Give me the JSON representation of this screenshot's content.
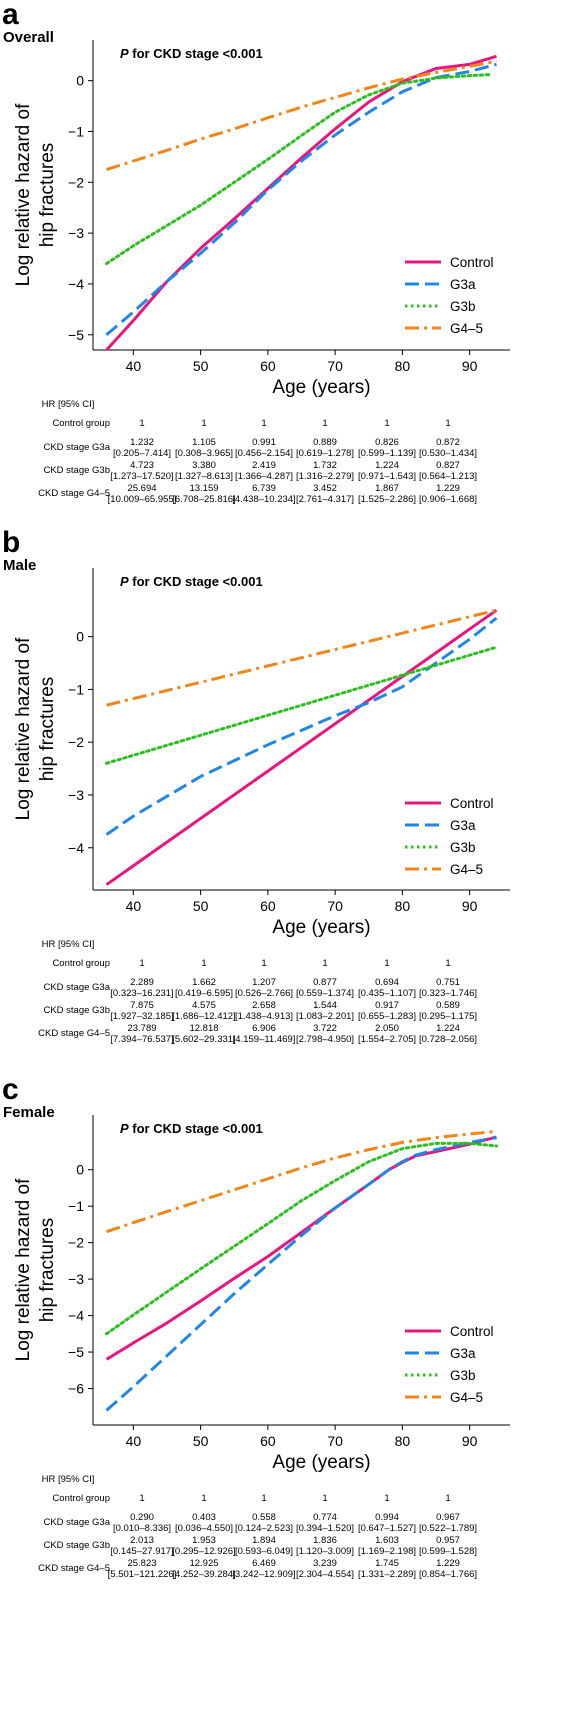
{
  "figure": {
    "panels": [
      {
        "letter": "a",
        "name": "Overall",
        "p_prefix": "P",
        "p_rest": " for CKD stage <0.001",
        "ylabel_line1": "Log relative hazard of",
        "ylabel_line2": "hip fractures",
        "xlabel": "Age (years)",
        "legend": [
          "Control",
          "G3a",
          "G3b",
          "G4–5"
        ],
        "table": {
          "header": "HR [95% CI]",
          "rows": [
            {
              "label": "Control group",
              "values": [
                "1",
                "1",
                "1",
                "1",
                "1",
                "1"
              ],
              "cis": [
                "",
                "",
                "",
                "",
                "",
                ""
              ]
            },
            {
              "label": "CKD stage G3a",
              "values": [
                "1.232",
                "1.105",
                "0.991",
                "0.889",
                "0.826",
                "0.872"
              ],
              "cis": [
                "[0.205–7.414]",
                "[0.308–3.965]",
                "[0.456–2.154]",
                "[0.619–1.278]",
                "[0.599–1.139]",
                "[0.530–1.434]"
              ]
            },
            {
              "label": "CKD stage G3b",
              "values": [
                "4.723",
                "3.380",
                "2.419",
                "1.732",
                "1.224",
                "0.827"
              ],
              "cis": [
                "[1.273–17.520]",
                "[1.327–8.613]",
                "[1.366–4.287]",
                "[1.316–2.279]",
                "[0.971–1.543]",
                "[0.564–1.213]"
              ]
            },
            {
              "label": "CKD stage G4–5",
              "values": [
                "25.694",
                "13.159",
                "6.739",
                "3.452",
                "1.867",
                "1.229"
              ],
              "cis": [
                "[10.009–65.955]",
                "[6.708–25.816]",
                "[4.438–10.234]",
                "[2.761–4.317]",
                "[1.525–2.286]",
                "[0.906–1.668]"
              ]
            }
          ]
        }
      },
      {
        "letter": "b",
        "name": "Male",
        "p_prefix": "P",
        "p_rest": " for CKD stage <0.001",
        "ylabel_line1": "Log relative hazard of",
        "ylabel_line2": "hip fractures",
        "xlabel": "Age (years)",
        "legend": [
          "Control",
          "G3a",
          "G3b",
          "G4–5"
        ],
        "table": {
          "header": "HR [95% CI]",
          "rows": [
            {
              "label": "Control group",
              "values": [
                "1",
                "1",
                "1",
                "1",
                "1",
                "1"
              ],
              "cis": [
                "",
                "",
                "",
                "",
                "",
                ""
              ]
            },
            {
              "label": "CKD stage G3a",
              "values": [
                "2.289",
                "1.662",
                "1.207",
                "0.877",
                "0.694",
                "0.751"
              ],
              "cis": [
                "[0.323–16.231]",
                "[0.419–6.595]",
                "[0.526–2.766]",
                "[0.559–1.374]",
                "[0.435–1.107]",
                "[0.323–1.746]"
              ]
            },
            {
              "label": "CKD stage G3b",
              "values": [
                "7.875",
                "4.575",
                "2.658",
                "1.544",
                "0.917",
                "0.589"
              ],
              "cis": [
                "[1.927–32.185]",
                "[1.686–12.412]",
                "[1.438–4.913]",
                "[1.083–2.201]",
                "[0.655–1.283]",
                "[0.295–1.175]"
              ]
            },
            {
              "label": "CKD stage G4–5",
              "values": [
                "23.789",
                "12.818",
                "6.906",
                "3.722",
                "2.050",
                "1.224"
              ],
              "cis": [
                "[7.394–76.537]",
                "[5.602–29.331]",
                "[4.159–11.469]",
                "[2.798–4.950]",
                "[1.554–2.705]",
                "[0.728–2.056]"
              ]
            }
          ]
        }
      },
      {
        "letter": "c",
        "name": "Female",
        "p_prefix": "P",
        "p_rest": " for CKD stage <0.001",
        "ylabel_line1": "Log relative hazard of",
        "ylabel_line2": "hip fractures",
        "xlabel": "Age (years)",
        "legend": [
          "Control",
          "G3a",
          "G3b",
          "G4–5"
        ],
        "table": {
          "header": "HR [95% CI]",
          "rows": [
            {
              "label": "Control group",
              "values": [
                "1",
                "1",
                "1",
                "1",
                "1",
                "1"
              ],
              "cis": [
                "",
                "",
                "",
                "",
                "",
                ""
              ]
            },
            {
              "label": "CKD stage G3a",
              "values": [
                "0.290",
                "0.403",
                "0.558",
                "0.774",
                "0.994",
                "0.967"
              ],
              "cis": [
                "[0.010–8.336]",
                "[0.036–4.550]",
                "[0.124–2.523]",
                "[0.394–1.520]",
                "[0.647–1.527]",
                "[0.522–1.789]"
              ]
            },
            {
              "label": "CKD stage G3b",
              "values": [
                "2.013",
                "1.953",
                "1.894",
                "1.836",
                "1.603",
                "0.957"
              ],
              "cis": [
                "[0.145–27.917]",
                "[0.295–12.926]",
                "[0.593–6.049]",
                "[1.120–3.009]",
                "[1.169–2.198]",
                "[0.599–1.528]"
              ]
            },
            {
              "label": "CKD stage G4–5",
              "values": [
                "25.823",
                "12.925",
                "6.469",
                "3.239",
                "1.745",
                "1.229"
              ],
              "cis": [
                "[5.501–121.226]",
                "[4.252–39.284]",
                "[3.242–12.909]",
                "[2.304–4.554]",
                "[1.331–2.289]",
                "[0.854–1.766]"
              ]
            }
          ]
        }
      }
    ]
  },
  "chart_data": [
    {
      "type": "line",
      "panel": "a",
      "title": "Overall",
      "annotation": "P for CKD stage <0.001",
      "xlabel": "Age (years)",
      "ylabel": "Log relative hazard of hip fractures",
      "xticks": [
        40,
        50,
        60,
        70,
        80,
        90
      ],
      "yticks": [
        0,
        -1,
        -2,
        -3,
        -4,
        -5
      ],
      "xlim": [
        34,
        96
      ],
      "ylim": [
        -5.3,
        0.8
      ],
      "grid": false,
      "legend_position": "bottom-right",
      "series": [
        {
          "name": "Control",
          "color": "#e8157f",
          "dash": "solid",
          "x": [
            36,
            40,
            45,
            50,
            55,
            60,
            65,
            70,
            75,
            80,
            85,
            90,
            94
          ],
          "y": [
            -5.3,
            -4.72,
            -3.95,
            -3.3,
            -2.72,
            -2.12,
            -1.52,
            -0.95,
            -0.42,
            -0.02,
            0.24,
            0.32,
            0.48
          ]
        },
        {
          "name": "G3a",
          "color": "#1f87e8",
          "dash": "dash",
          "x": [
            36,
            40,
            45,
            50,
            55,
            60,
            65,
            70,
            75,
            80,
            85,
            90,
            94
          ],
          "y": [
            -5.0,
            -4.55,
            -3.95,
            -3.4,
            -2.8,
            -2.15,
            -1.58,
            -1.07,
            -0.62,
            -0.22,
            0.06,
            0.18,
            0.32
          ]
        },
        {
          "name": "G3b",
          "color": "#2dbf1f",
          "dash": "dot",
          "x": [
            36,
            40,
            45,
            50,
            55,
            60,
            65,
            70,
            75,
            80,
            85,
            90,
            93
          ],
          "y": [
            -3.6,
            -3.25,
            -2.85,
            -2.45,
            -2.0,
            -1.55,
            -1.08,
            -0.62,
            -0.28,
            -0.05,
            0.05,
            0.1,
            0.12
          ]
        },
        {
          "name": "G4–5",
          "color": "#f08519",
          "dash": "dashdot",
          "x": [
            36,
            40,
            45,
            50,
            55,
            60,
            65,
            70,
            75,
            80,
            85,
            90,
            94
          ],
          "y": [
            -1.75,
            -1.58,
            -1.37,
            -1.15,
            -0.95,
            -0.73,
            -0.52,
            -0.33,
            -0.14,
            0.03,
            0.16,
            0.28,
            0.38
          ]
        }
      ]
    },
    {
      "type": "line",
      "panel": "b",
      "title": "Male",
      "annotation": "P for CKD stage <0.001",
      "xlabel": "Age (years)",
      "ylabel": "Log relative hazard of hip fractures",
      "xticks": [
        40,
        50,
        60,
        70,
        80,
        90
      ],
      "yticks": [
        0,
        -1,
        -2,
        -3,
        -4
      ],
      "xlim": [
        34,
        96
      ],
      "ylim": [
        -4.8,
        1.3
      ],
      "grid": false,
      "legend_position": "bottom-right",
      "series": [
        {
          "name": "Control",
          "color": "#e8157f",
          "dash": "solid",
          "x": [
            36,
            94
          ],
          "y": [
            -4.7,
            0.5
          ]
        },
        {
          "name": "G3a",
          "color": "#1f87e8",
          "dash": "dash",
          "x": [
            36,
            40,
            50,
            60,
            70,
            75,
            80,
            85,
            90,
            94
          ],
          "y": [
            -3.75,
            -3.4,
            -2.65,
            -2.05,
            -1.5,
            -1.25,
            -0.95,
            -0.5,
            -0.05,
            0.35
          ]
        },
        {
          "name": "G3b",
          "color": "#2dbf1f",
          "dash": "dot",
          "x": [
            36,
            94
          ],
          "y": [
            -2.4,
            -0.2
          ]
        },
        {
          "name": "G4–5",
          "color": "#f08519",
          "dash": "dashdot",
          "x": [
            36,
            94
          ],
          "y": [
            -1.3,
            0.5
          ]
        }
      ]
    },
    {
      "type": "line",
      "panel": "c",
      "title": "Female",
      "annotation": "P for CKD stage <0.001",
      "xlabel": "Age (years)",
      "ylabel": "Log relative hazard of hip fractures",
      "xticks": [
        40,
        50,
        60,
        70,
        80,
        90
      ],
      "yticks": [
        0,
        -1,
        -2,
        -3,
        -4,
        -5,
        -6
      ],
      "xlim": [
        34,
        96
      ],
      "ylim": [
        -7,
        1.5
      ],
      "grid": false,
      "legend_position": "bottom-right",
      "series": [
        {
          "name": "Control",
          "color": "#e8157f",
          "dash": "solid",
          "x": [
            36,
            40,
            45,
            50,
            55,
            60,
            65,
            70,
            75,
            78,
            80,
            82,
            85,
            90,
            94
          ],
          "y": [
            -5.2,
            -4.75,
            -4.2,
            -3.6,
            -2.98,
            -2.38,
            -1.72,
            -1.05,
            -0.4,
            0.0,
            0.2,
            0.38,
            0.5,
            0.7,
            0.9
          ]
        },
        {
          "name": "G3a",
          "color": "#1f87e8",
          "dash": "dash",
          "x": [
            36,
            40,
            45,
            50,
            55,
            60,
            65,
            70,
            75,
            78,
            80,
            82,
            85,
            90,
            94
          ],
          "y": [
            -6.6,
            -5.95,
            -5.1,
            -4.25,
            -3.4,
            -2.6,
            -1.8,
            -1.05,
            -0.4,
            0.0,
            0.22,
            0.4,
            0.55,
            0.75,
            0.88
          ]
        },
        {
          "name": "G3b",
          "color": "#2dbf1f",
          "dash": "dot",
          "x": [
            36,
            40,
            45,
            50,
            55,
            60,
            65,
            70,
            75,
            80,
            85,
            90,
            94
          ],
          "y": [
            -4.5,
            -3.98,
            -3.35,
            -2.72,
            -2.1,
            -1.48,
            -0.85,
            -0.3,
            0.22,
            0.58,
            0.72,
            0.72,
            0.65
          ]
        },
        {
          "name": "G4–5",
          "color": "#f08519",
          "dash": "dashdot",
          "x": [
            36,
            40,
            45,
            50,
            55,
            60,
            65,
            70,
            75,
            80,
            85,
            90,
            94
          ],
          "y": [
            -1.7,
            -1.45,
            -1.15,
            -0.85,
            -0.55,
            -0.25,
            0.05,
            0.32,
            0.55,
            0.75,
            0.88,
            0.98,
            1.05
          ]
        }
      ]
    }
  ]
}
